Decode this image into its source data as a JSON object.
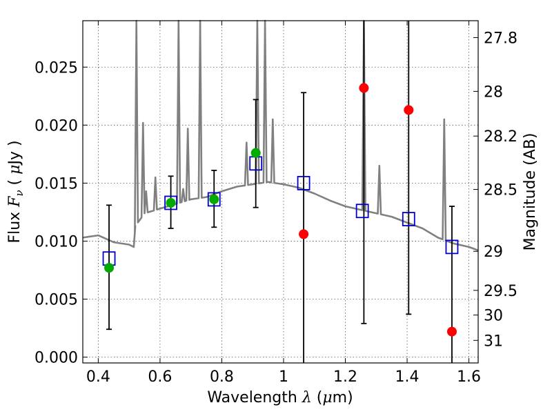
{
  "chart_data": {
    "type": "scatter",
    "title": "",
    "xlabel_text": "Wavelength",
    "xlabel_sym": "λ",
    "xlabel_unit_open": " (",
    "xlabel_unit_mu": "μ",
    "xlabel_unit_close": "m)",
    "ylabel_text": "Flux",
    "ylabel_sym": "F",
    "ylabel_sub": "ν",
    "ylabel_unit_open": " ( ",
    "ylabel_unit_mu": "μ",
    "ylabel_unit_close": "Jy )",
    "y2label": "Magnitude (AB)",
    "xlim": [
      0.35,
      1.63
    ],
    "ylim": [
      -0.0005,
      0.029
    ],
    "grid": true,
    "x_ticks": [
      {
        "v": 0.4,
        "label": "0.4"
      },
      {
        "v": 0.6,
        "label": "0.6"
      },
      {
        "v": 0.8,
        "label": "0.8"
      },
      {
        "v": 1.0,
        "label": "1"
      },
      {
        "v": 1.2,
        "label": "1.2"
      },
      {
        "v": 1.4,
        "label": "1.4"
      },
      {
        "v": 1.6,
        "label": "1.6"
      }
    ],
    "y_ticks": [
      {
        "v": 0.0,
        "label": "0.000"
      },
      {
        "v": 0.005,
        "label": "0.005"
      },
      {
        "v": 0.01,
        "label": "0.010"
      },
      {
        "v": 0.015,
        "label": "0.015"
      },
      {
        "v": 0.02,
        "label": "0.020"
      },
      {
        "v": 0.025,
        "label": "0.025"
      }
    ],
    "mag_ticks": [
      {
        "v": 27.8,
        "label": "27.8"
      },
      {
        "v": 28.0,
        "label": "28"
      },
      {
        "v": 28.2,
        "label": "28.2"
      },
      {
        "v": 28.5,
        "label": "28.5"
      },
      {
        "v": 29.0,
        "label": "29"
      },
      {
        "v": 29.5,
        "label": "29.5"
      },
      {
        "v": 30.0,
        "label": "30"
      },
      {
        "v": 31.0,
        "label": "31"
      }
    ],
    "colors": {
      "sed": "#808080",
      "model": "#0000cc",
      "detection": "#00aa00",
      "upper_limit": "#ff0000",
      "errorbar": "#000000",
      "grid": "#555555"
    },
    "sed_continuum": [
      [
        0.35,
        0.0103
      ],
      [
        0.4,
        0.0105
      ],
      [
        0.45,
        0.0099
      ],
      [
        0.5,
        0.0097
      ],
      [
        0.515,
        0.0095
      ],
      [
        0.52,
        0.0113
      ],
      [
        0.55,
        0.0124
      ],
      [
        0.6,
        0.0128
      ],
      [
        0.65,
        0.0132
      ],
      [
        0.7,
        0.0136
      ],
      [
        0.75,
        0.0138
      ],
      [
        0.8,
        0.0143
      ],
      [
        0.85,
        0.0147
      ],
      [
        0.9,
        0.0149
      ],
      [
        0.95,
        0.0151
      ],
      [
        1.0,
        0.0149
      ],
      [
        1.05,
        0.0146
      ],
      [
        1.1,
        0.0141
      ],
      [
        1.15,
        0.0135
      ],
      [
        1.2,
        0.013
      ],
      [
        1.25,
        0.0127
      ],
      [
        1.3,
        0.0124
      ],
      [
        1.35,
        0.0121
      ],
      [
        1.4,
        0.0116
      ],
      [
        1.45,
        0.0111
      ],
      [
        1.5,
        0.0103
      ],
      [
        1.55,
        0.0098
      ],
      [
        1.6,
        0.0095
      ],
      [
        1.63,
        0.0092
      ]
    ],
    "sed_lines": [
      {
        "x": 0.5235,
        "peak": 0.03
      },
      {
        "x": 0.545,
        "peak": 0.0202
      },
      {
        "x": 0.555,
        "peak": 0.0143
      },
      {
        "x": 0.585,
        "peak": 0.0155
      },
      {
        "x": 0.66,
        "peak": 0.03
      },
      {
        "x": 0.675,
        "peak": 0.0145
      },
      {
        "x": 0.69,
        "peak": 0.0197
      },
      {
        "x": 0.73,
        "peak": 0.03
      },
      {
        "x": 0.88,
        "peak": 0.0185
      },
      {
        "x": 0.915,
        "peak": 0.03
      },
      {
        "x": 0.94,
        "peak": 0.03
      },
      {
        "x": 0.965,
        "peak": 0.0205
      },
      {
        "x": 1.26,
        "peak": 0.03
      },
      {
        "x": 1.31,
        "peak": 0.0165
      },
      {
        "x": 1.52,
        "peak": 0.0205
      }
    ],
    "model_points": [
      {
        "x": 0.435,
        "y": 0.0085
      },
      {
        "x": 0.635,
        "y": 0.0133
      },
      {
        "x": 0.775,
        "y": 0.0136
      },
      {
        "x": 0.91,
        "y": 0.0167
      },
      {
        "x": 1.065,
        "y": 0.015
      },
      {
        "x": 1.255,
        "y": 0.0126
      },
      {
        "x": 1.405,
        "y": 0.0119
      },
      {
        "x": 1.545,
        "y": 0.0095
      }
    ],
    "observed_points": [
      {
        "x": 0.435,
        "y": 0.0077,
        "ylo": 0.0024,
        "yhi": 0.0131,
        "kind": "detection"
      },
      {
        "x": 0.635,
        "y": 0.0133,
        "ylo": 0.0111,
        "yhi": 0.0156,
        "kind": "detection"
      },
      {
        "x": 0.775,
        "y": 0.0136,
        "ylo": 0.0112,
        "yhi": 0.0161,
        "kind": "detection"
      },
      {
        "x": 0.91,
        "y": 0.0176,
        "ylo": 0.0129,
        "yhi": 0.0222,
        "kind": "detection"
      },
      {
        "x": 1.065,
        "y": 0.0106,
        "ylo": -0.0005,
        "yhi": 0.0228,
        "kind": "upper_limit"
      },
      {
        "x": 1.26,
        "y": 0.0232,
        "ylo": 0.0029,
        "yhi": 0.029,
        "kind": "upper_limit"
      },
      {
        "x": 1.405,
        "y": 0.0213,
        "ylo": 0.0037,
        "yhi": 0.029,
        "kind": "upper_limit"
      },
      {
        "x": 1.545,
        "y": 0.0022,
        "ylo": -0.0005,
        "yhi": 0.013,
        "kind": "upper_limit"
      }
    ]
  }
}
